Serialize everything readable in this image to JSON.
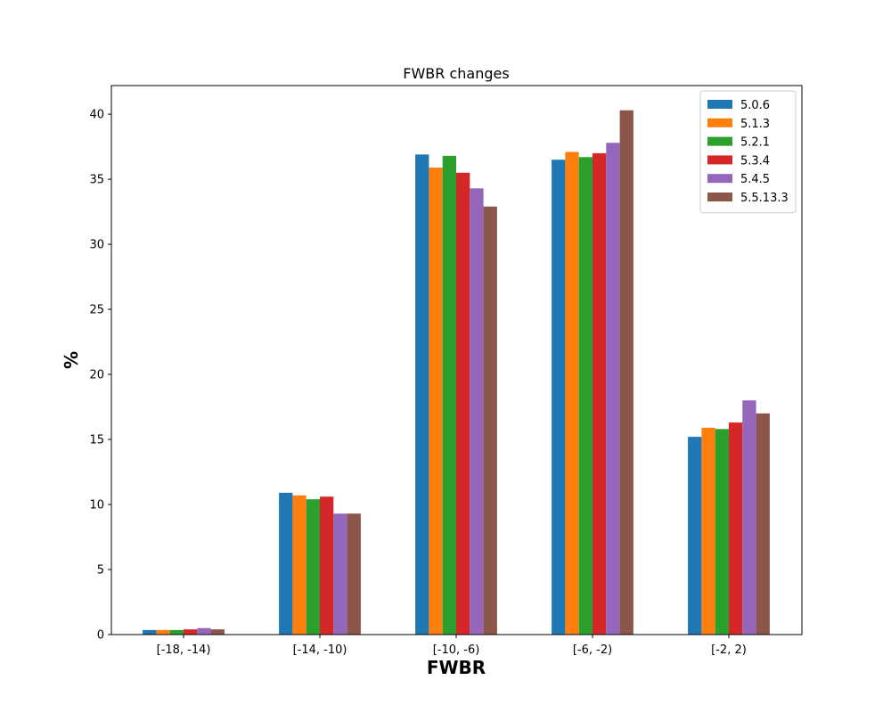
{
  "chart_data": {
    "type": "bar",
    "title": "FWBR changes",
    "xlabel": "FWBR",
    "ylabel": "%",
    "categories": [
      "[-18, -14)",
      "[-14, -10)",
      "[-10, -6)",
      "[-6, -2)",
      "[-2, 2)"
    ],
    "ylim": [
      0,
      42.2
    ],
    "yticks": [
      0,
      5,
      10,
      15,
      20,
      25,
      30,
      35,
      40
    ],
    "grid": false,
    "legend_position": "top-right",
    "series": [
      {
        "name": "5.0.6",
        "color": "#1f77b4",
        "values": [
          0.35,
          10.9,
          36.9,
          36.5,
          15.2
        ]
      },
      {
        "name": "5.1.3",
        "color": "#ff7f0e",
        "values": [
          0.35,
          10.7,
          35.9,
          37.1,
          15.9
        ]
      },
      {
        "name": "5.2.1",
        "color": "#2ca02c",
        "values": [
          0.35,
          10.4,
          36.8,
          36.7,
          15.8
        ]
      },
      {
        "name": "5.3.4",
        "color": "#d62728",
        "values": [
          0.4,
          10.6,
          35.5,
          37.0,
          16.3
        ]
      },
      {
        "name": "5.4.5",
        "color": "#9467bd",
        "values": [
          0.5,
          9.3,
          34.3,
          37.8,
          18.0
        ]
      },
      {
        "name": "5.5.13.3",
        "color": "#8c564b",
        "values": [
          0.4,
          9.3,
          32.9,
          40.3,
          17.0
        ]
      }
    ]
  }
}
